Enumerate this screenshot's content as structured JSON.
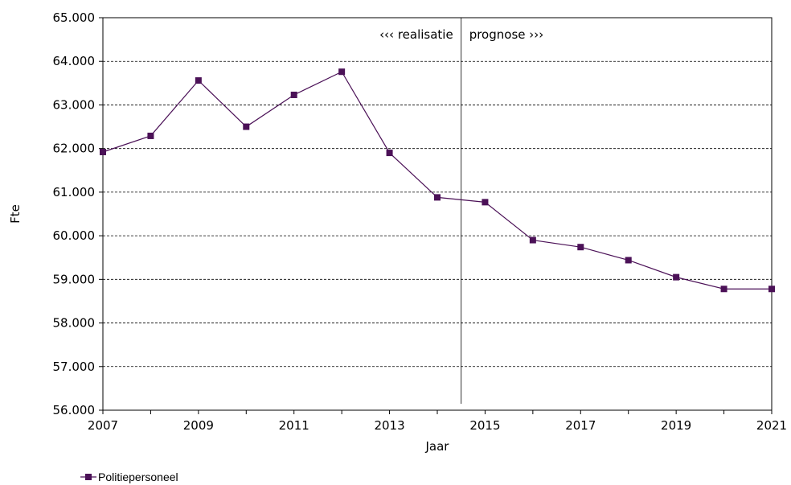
{
  "chart_data": {
    "type": "line",
    "title": "",
    "xlabel": "Jaar",
    "ylabel": "Fte",
    "xlim": [
      2007,
      2021
    ],
    "ylim": [
      56000,
      65000
    ],
    "x_ticks": [
      2007,
      2009,
      2011,
      2013,
      2015,
      2017,
      2019,
      2021
    ],
    "y_ticks": [
      56000,
      57000,
      58000,
      59000,
      60000,
      61000,
      62000,
      63000,
      64000,
      65000
    ],
    "y_tick_labels": [
      "56.000",
      "57.000",
      "58.000",
      "59.000",
      "60.000",
      "61.000",
      "62.000",
      "63.000",
      "64.000",
      "65.000"
    ],
    "grid": "horizontal dashed",
    "legend_position": "bottom-left",
    "series": [
      {
        "name": "Politiepersoneel",
        "color": "#4b1157",
        "x": [
          2007,
          2008,
          2009,
          2010,
          2011,
          2012,
          2013,
          2014,
          2015,
          2016,
          2017,
          2018,
          2019,
          2020,
          2021
        ],
        "values": [
          61920,
          62290,
          63560,
          62500,
          63230,
          63760,
          61900,
          60880,
          60770,
          59900,
          59740,
          59440,
          59050,
          58780,
          58780
        ]
      }
    ],
    "annotations": [
      {
        "text": "‹‹‹ realisatie",
        "side": "left"
      },
      {
        "text": "prognose ›››",
        "side": "right"
      }
    ],
    "divider_x": 2014.5
  }
}
